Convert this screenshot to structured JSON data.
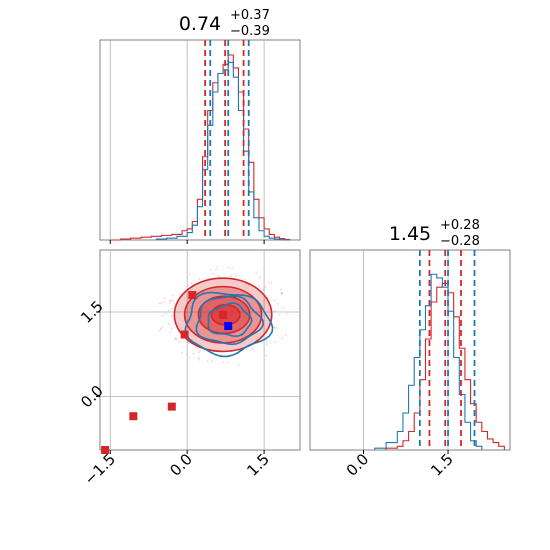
{
  "chart_data": {
    "type": "corner",
    "colors": {
      "red": "#d62728",
      "blue": "#1f77b4",
      "grid": "#b0b0b0",
      "axis": "#808080"
    },
    "params": [
      {
        "title_main": "0.74",
        "title_up": "+0.37",
        "title_down": "−0.39",
        "range": [
          -1.7,
          2.2
        ],
        "ticks": [
          -1.5,
          0.0,
          1.5
        ],
        "tick_labels": [
          "−1.5",
          "0.0",
          "1.5"
        ],
        "quantiles_red": [
          0.35,
          0.74,
          1.1
        ],
        "quantiles_blue": [
          0.45,
          0.8,
          1.2
        ]
      },
      {
        "title_main": "1.45",
        "title_up": "+0.28",
        "title_down": "−0.28",
        "range": [
          -0.95,
          2.6
        ],
        "ticks": [
          0.0,
          1.5
        ],
        "tick_labels": [
          "0.0",
          "1.5"
        ],
        "quantiles_red": [
          1.17,
          1.45,
          1.73
        ],
        "quantiles_blue": [
          1.0,
          1.5,
          1.97
        ]
      }
    ],
    "hist_red_1": {
      "bins": [
        -1.5,
        -1.3,
        -1.1,
        -0.9,
        -0.7,
        -0.5,
        -0.3,
        -0.1,
        0.0,
        0.1,
        0.2,
        0.3,
        0.4,
        0.5,
        0.6,
        0.7,
        0.8,
        0.9,
        1.0,
        1.1,
        1.2,
        1.3,
        1.4,
        1.5,
        1.6,
        1.7,
        1.8,
        1.9,
        2.0
      ],
      "counts": [
        0,
        0.005,
        0.01,
        0.015,
        0.02,
        0.025,
        0.03,
        0.05,
        0.06,
        0.1,
        0.22,
        0.45,
        0.7,
        0.85,
        0.9,
        0.95,
        1.0,
        0.93,
        0.8,
        0.6,
        0.42,
        0.22,
        0.12,
        0.06,
        0.03,
        0.015,
        0.008,
        0.003
      ]
    },
    "hist_blue_1": {
      "bins": [
        -0.6,
        -0.4,
        -0.2,
        0.0,
        0.1,
        0.2,
        0.3,
        0.4,
        0.5,
        0.6,
        0.7,
        0.8,
        0.9,
        1.0,
        1.1,
        1.2,
        1.3,
        1.4,
        1.5,
        1.6,
        1.7,
        1.8,
        1.9,
        2.0
      ],
      "counts": [
        0.005,
        0.01,
        0.02,
        0.04,
        0.08,
        0.18,
        0.38,
        0.62,
        0.8,
        0.9,
        0.92,
        0.96,
        0.88,
        0.7,
        0.48,
        0.26,
        0.12,
        0.05,
        0.02,
        0.01,
        0.005,
        0.002,
        0
      ]
    },
    "hist_red_2": {
      "bins": [
        0.4,
        0.6,
        0.7,
        0.8,
        0.9,
        1.0,
        1.1,
        1.2,
        1.3,
        1.4,
        1.5,
        1.6,
        1.7,
        1.8,
        1.9,
        2.0,
        2.1,
        2.2,
        2.3,
        2.4,
        2.5
      ],
      "counts": [
        0.01,
        0.02,
        0.05,
        0.1,
        0.2,
        0.38,
        0.6,
        0.8,
        0.88,
        0.9,
        0.85,
        0.72,
        0.55,
        0.38,
        0.25,
        0.15,
        0.1,
        0.06,
        0.04,
        0.02
      ]
    },
    "hist_blue_2": {
      "bins": [
        0.2,
        0.4,
        0.6,
        0.7,
        0.8,
        0.9,
        1.0,
        1.1,
        1.2,
        1.3,
        1.4,
        1.5,
        1.6,
        1.7,
        1.8,
        1.9,
        2.0,
        2.1
      ],
      "counts": [
        0.01,
        0.04,
        0.1,
        0.2,
        0.35,
        0.5,
        0.65,
        0.78,
        0.95,
        0.93,
        0.88,
        0.75,
        0.5,
        0.3,
        0.15,
        0.05,
        0.02
      ]
    },
    "contours_red": [
      {
        "cx": 0.7,
        "cy": 1.45,
        "rx": 0.95,
        "ry": 0.65,
        "alpha": 0.45
      },
      {
        "cx": 0.7,
        "cy": 1.45,
        "rx": 0.75,
        "ry": 0.5,
        "alpha": 0.6
      },
      {
        "cx": 0.72,
        "cy": 1.45,
        "rx": 0.5,
        "ry": 0.33,
        "alpha": 0.8
      },
      {
        "cx": 0.75,
        "cy": 1.45,
        "rx": 0.28,
        "ry": 0.18,
        "alpha": 0.95
      }
    ],
    "contours_blue": [
      {
        "cx": 0.78,
        "cy": 1.3,
        "rx": 0.82,
        "ry": 0.55
      },
      {
        "cx": 0.8,
        "cy": 1.35,
        "rx": 0.62,
        "ry": 0.42
      },
      {
        "cx": 0.82,
        "cy": 1.35,
        "rx": 0.42,
        "ry": 0.28
      }
    ],
    "red_points": [
      [
        0.1,
        1.8
      ],
      [
        -0.05,
        1.1
      ],
      [
        0.7,
        1.45
      ],
      [
        -1.05,
        -0.35
      ],
      [
        -0.3,
        -0.18
      ],
      [
        -1.6,
        -0.95
      ]
    ],
    "blue_points": [
      [
        0.8,
        1.25
      ]
    ]
  }
}
